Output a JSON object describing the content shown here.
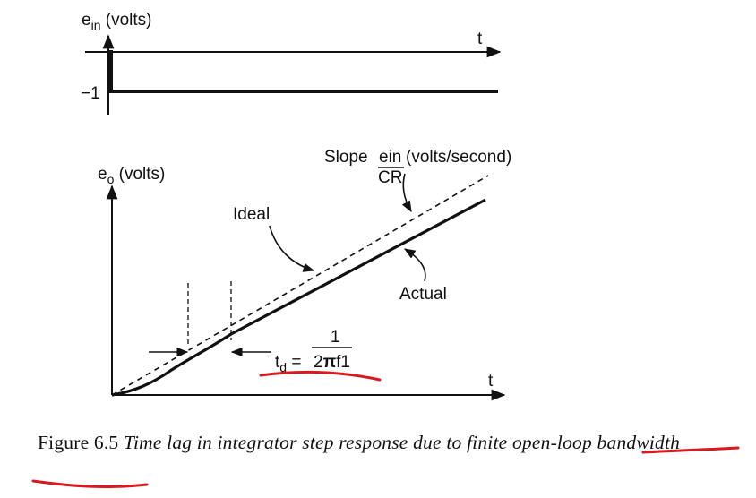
{
  "top_plot": {
    "ylabel_main": "e",
    "ylabel_sub": "in",
    "ylabel_unit": " (volts)",
    "xlabel": "t",
    "level_label": "−1"
  },
  "bottom_plot": {
    "ylabel_main": "e",
    "ylabel_sub": "o",
    "ylabel_unit": " (volts)",
    "xlabel": "t",
    "slope_prefix": "Slope",
    "slope_num": "ein",
    "slope_den": "CR",
    "slope_unit": "(volts/second)",
    "ideal_label": "Ideal",
    "actual_label": "Actual",
    "td_main": "t",
    "td_sub": "d",
    "td_eq": " = ",
    "td_num": "1",
    "td_den_a": "2",
    "td_den_pi": "π",
    "td_den_b": "f1"
  },
  "caption": {
    "figure_label": "Figure 6.5",
    "text_before_underline": "Time lag in integrator step response due to finite",
    "underlined_1": "open-loop",
    "underlined_2": "bandwidth"
  },
  "colors": {
    "ink": "#111111",
    "annotation": "#d8191e"
  }
}
